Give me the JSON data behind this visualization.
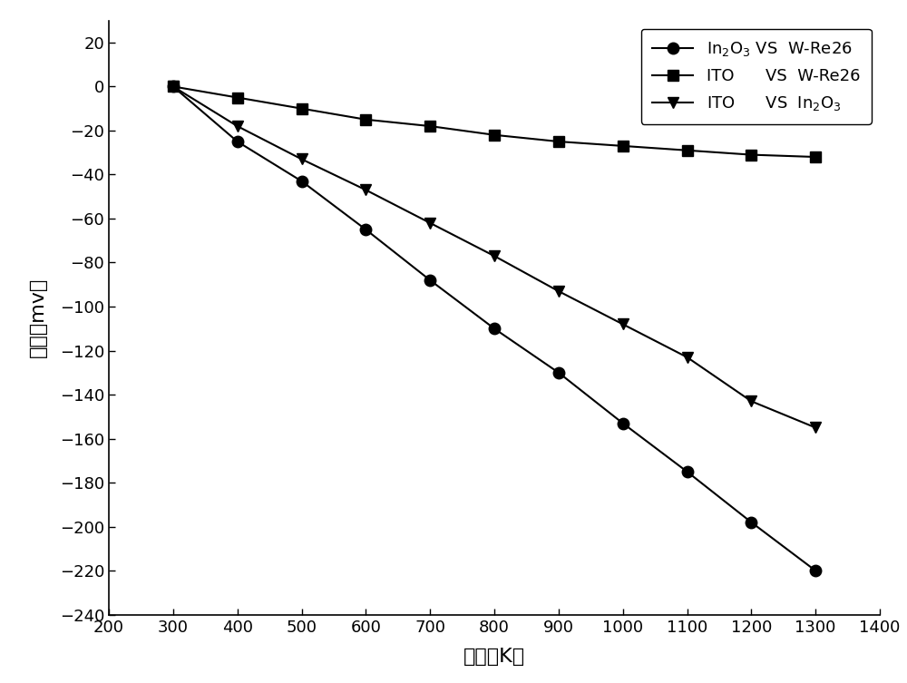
{
  "x": [
    300,
    400,
    500,
    600,
    700,
    800,
    900,
    1000,
    1100,
    1200,
    1300
  ],
  "in2o3_vs_wre26": [
    0,
    -25,
    -43,
    -65,
    -88,
    -110,
    -130,
    -153,
    -175,
    -198,
    -220
  ],
  "ito_vs_wre26": [
    0,
    -5,
    -10,
    -15,
    -18,
    -22,
    -25,
    -27,
    -29,
    -31,
    -32
  ],
  "ito_vs_in2o3": [
    0,
    -18,
    -33,
    -47,
    -62,
    -77,
    -93,
    -108,
    -123,
    -143,
    -155
  ],
  "xlabel": "温度（K）",
  "ylabel": "电压（mv）",
  "xlim": [
    200,
    1400
  ],
  "ylim": [
    -240,
    30
  ],
  "xticks": [
    200,
    300,
    400,
    500,
    600,
    700,
    800,
    900,
    1000,
    1100,
    1200,
    1300,
    1400
  ],
  "yticks": [
    20,
    0,
    -20,
    -40,
    -60,
    -80,
    -100,
    -120,
    -140,
    -160,
    -180,
    -200,
    -220,
    -240
  ],
  "line_color": "#000000",
  "marker_circle": "o",
  "marker_square": "s",
  "marker_triangle": "v",
  "markersize": 9,
  "linewidth": 1.5,
  "background_color": "#ffffff",
  "axis_fontsize": 16,
  "tick_fontsize": 13,
  "legend_fontsize": 13
}
